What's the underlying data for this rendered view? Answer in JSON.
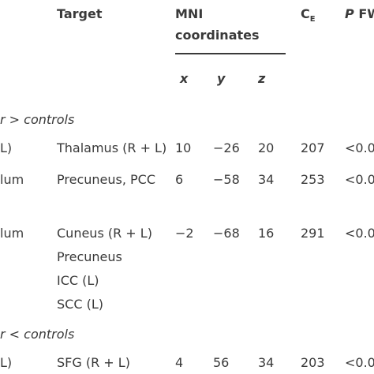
{
  "header": {
    "target": "Target",
    "mni_line1": "MNI",
    "mni_line2": "coordinates",
    "ce": {
      "main": "C",
      "sub": "E"
    },
    "p": {
      "italic": "P",
      "rest": "FW"
    },
    "coords": [
      "x",
      "y",
      "z"
    ]
  },
  "groups": [
    {
      "label": "r > controls",
      "rows": [
        {
          "seed": "L)",
          "target": "Thalamus (R + L)",
          "x": "10",
          "y": "−26",
          "z": "20",
          "ce": "207",
          "p": "<0.0"
        },
        {
          "seed": "lum",
          "target": "Precuneus, PCC",
          "x": "6",
          "y": "−58",
          "z": "34",
          "ce": "253",
          "p": "<0.0"
        },
        {
          "seed": "lum",
          "target": "Cuneus (R + L)",
          "x": "−2",
          "y": "−68",
          "z": "16",
          "ce": "291",
          "p": "<0.0"
        },
        {
          "target": "Precuneus"
        },
        {
          "target": "ICC (L)"
        },
        {
          "target": "SCC (L)"
        }
      ]
    },
    {
      "label": "r < controls",
      "rows": [
        {
          "seed": "L)",
          "target": "SFG (R + L)",
          "x": "4",
          "y": "56",
          "z": "34",
          "ce": "203",
          "p": "<0.0"
        }
      ]
    }
  ]
}
